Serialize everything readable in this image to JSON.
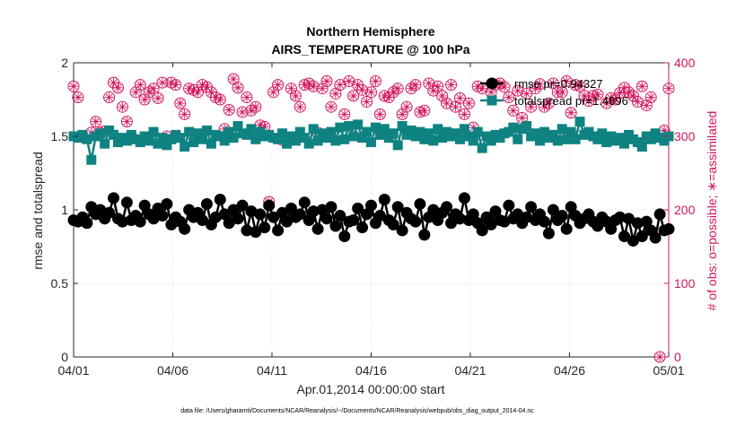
{
  "chart_data": {
    "type": "line",
    "title": "Northern Hemisphere",
    "subtitle": "AIRS_TEMPERATURE @ 100 hPa",
    "xlabel": "Apr.01,2014 00:00:00 start",
    "ylabel": "rmse and totalspread",
    "ylabel_right": "# of obs: o=possible; ∗=assimilated",
    "footer": "data file: /Users/gharamti/Documents/NCAR/Reanalysis/~/Documents/NCAR/Reanalysis/webpub/obs_diag_output_2014-04.nc",
    "x_range": [
      0,
      30
    ],
    "x_ticks": [
      0,
      5,
      10,
      15,
      20,
      25,
      30
    ],
    "x_tick_labels": [
      "04/01",
      "04/06",
      "04/11",
      "04/16",
      "04/21",
      "04/26",
      "05/01"
    ],
    "ylim_left": [
      0,
      2
    ],
    "y_ticks_left": [
      0,
      0.5,
      1,
      1.5,
      2
    ],
    "y_tick_labels_left": [
      "0",
      "0.5",
      "1",
      "1.5",
      "2"
    ],
    "ylim_right": [
      0,
      400
    ],
    "y_ticks_right": [
      0,
      100,
      200,
      300,
      400
    ],
    "y_tick_labels_right": [
      "0",
      "100",
      "200",
      "300",
      "400"
    ],
    "grid": true,
    "legend_position": "top-right",
    "colors": {
      "rmse": "#000000",
      "totalspread": "#0f8282",
      "obs": "#d1165c",
      "grid": "#dedede",
      "axis": "#262626"
    },
    "series": [
      {
        "name": "rmse pr=0.94327",
        "axis": "left",
        "values": [
          0.93,
          0.92,
          0.95,
          0.91,
          1.02,
          0.97,
          1.0,
          0.94,
          0.98,
          1.08,
          0.94,
          0.92,
          1.05,
          0.93,
          0.96,
          0.92,
          1.03,
          0.97,
          0.94,
          1.01,
          0.96,
          1.04,
          0.9,
          0.95,
          0.92,
          0.87,
          1.0,
          0.95,
          0.98,
          0.93,
          1.04,
          0.9,
          0.95,
          1.07,
          0.97,
          0.91,
          1.0,
          0.94,
          1.03,
          0.86,
          0.99,
          0.85,
          0.97,
          0.88,
          1.03,
          0.95,
          0.86,
          0.98,
          0.92,
          1.01,
          0.95,
          0.97,
          1.05,
          0.93,
          0.99,
          0.87,
          1.0,
          0.94,
          1.02,
          0.89,
          0.96,
          0.82,
          0.92,
          0.93,
          1.01,
          0.88,
          0.97,
          1.03,
          0.91,
          0.96,
          1.07,
          0.93,
          0.9,
          1.02,
          0.86,
          0.98,
          0.94,
          0.92,
          1.04,
          0.83,
          0.95,
          1.0,
          0.93,
          0.98,
          1.02,
          0.91,
          0.97,
          0.94,
          1.08,
          0.93,
          0.97,
          0.91,
          0.86,
          0.95,
          0.9,
          0.99,
          0.93,
          0.92,
          1.03,
          0.94,
          0.97,
          0.91,
          0.95,
          1.02,
          0.93,
          0.97,
          0.92,
          0.84,
          1.0,
          0.93,
          0.96,
          0.87,
          1.02,
          0.96,
          0.91,
          0.94,
          0.97,
          0.92,
          0.89,
          0.95,
          0.92,
          0.87,
          0.93,
          0.95,
          0.82,
          0.94,
          0.79,
          0.91,
          0.82,
          0.92,
          0.86,
          0.81,
          0.97,
          0.86,
          0.87
        ],
        "marker": "filled-circle"
      },
      {
        "name": "totalspread pr=1.4896",
        "axis": "left",
        "values": [
          1.5,
          1.49,
          1.51,
          1.48,
          1.34,
          1.5,
          1.52,
          1.45,
          1.54,
          1.51,
          1.46,
          1.49,
          1.47,
          1.51,
          1.48,
          1.46,
          1.5,
          1.47,
          1.53,
          1.45,
          1.49,
          1.44,
          1.48,
          1.51,
          1.49,
          1.43,
          1.53,
          1.46,
          1.52,
          1.48,
          1.54,
          1.45,
          1.51,
          1.5,
          1.47,
          1.53,
          1.49,
          1.57,
          1.52,
          1.51,
          1.55,
          1.48,
          1.53,
          1.5,
          1.51,
          1.49,
          1.48,
          1.52,
          1.45,
          1.5,
          1.47,
          1.53,
          1.49,
          1.45,
          1.55,
          1.47,
          1.52,
          1.49,
          1.53,
          1.47,
          1.56,
          1.48,
          1.57,
          1.5,
          1.58,
          1.49,
          1.53,
          1.46,
          1.56,
          1.51,
          1.55,
          1.49,
          1.52,
          1.44,
          1.57,
          1.51,
          1.54,
          1.5,
          1.53,
          1.48,
          1.52,
          1.47,
          1.55,
          1.49,
          1.53,
          1.5,
          1.52,
          1.48,
          1.55,
          1.5,
          1.47,
          1.53,
          1.42,
          1.5,
          1.47,
          1.51,
          1.49,
          1.52,
          1.53,
          1.56,
          1.48,
          1.55,
          1.57,
          1.5,
          1.52,
          1.47,
          1.53,
          1.49,
          1.51,
          1.47,
          1.55,
          1.48,
          1.53,
          1.48,
          1.6,
          1.51,
          1.53,
          1.5,
          1.48,
          1.52,
          1.46,
          1.5,
          1.47,
          1.49,
          1.45,
          1.51,
          1.48,
          1.46,
          1.43,
          1.5,
          1.48,
          1.52,
          1.49,
          1.47,
          1.5
        ],
        "marker": "filled-square"
      },
      {
        "name": "obs possible",
        "axis": "right",
        "values": [
          368,
          353,
          300,
          188,
          305,
          320,
          305,
          307,
          353,
          373,
          366,
          340,
          320,
          300,
          360,
          370,
          350,
          360,
          365,
          352,
          373,
          300,
          373,
          370,
          345,
          330,
          365,
          363,
          360,
          370,
          367,
          360,
          353,
          350,
          310,
          336,
          378,
          366,
          333,
          353,
          335,
          340,
          315,
          313,
          211,
          360,
          370,
          295,
          189,
          365,
          355,
          340,
          370,
          372,
          368,
          305,
          365,
          375,
          340,
          358,
          370,
          330,
          375,
          355,
          370,
          363,
          347,
          360,
          375,
          330,
          355,
          353,
          360,
          365,
          330,
          340,
          365,
          370,
          333,
          335,
          372,
          362,
          368,
          355,
          345,
          370,
          340,
          352,
          330,
          345,
          312,
          368,
          365,
          190,
          360,
          370,
          372,
          367,
          353,
          335,
          362,
          325,
          358,
          340,
          365,
          371,
          340,
          345,
          372,
          360,
          360,
          375,
          332,
          370,
          368,
          355,
          348,
          355,
          357,
          300,
          345,
          352,
          350,
          359,
          366,
          360,
          355,
          347,
          368,
          342,
          353,
          300,
          0,
          308,
          365
        ],
        "marker": "circle-asterisk"
      }
    ]
  }
}
